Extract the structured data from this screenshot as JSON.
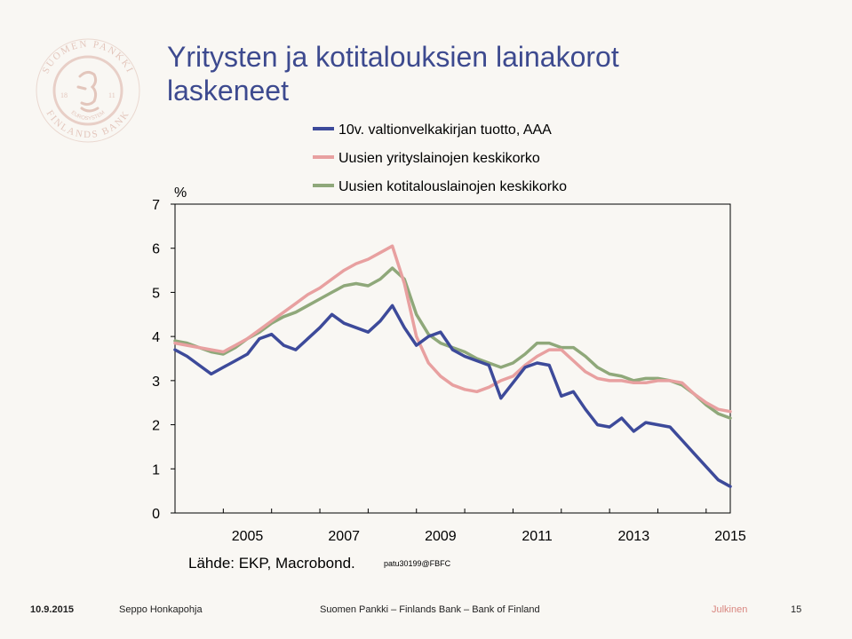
{
  "slide": {
    "title_line1": "Yritysten ja kotitalouksien lainakorot",
    "title_line2": "laskeneet",
    "source": "Lähde: EKP, Macrobond.",
    "code": "patu30199@FBFC"
  },
  "logo": {
    "text_top": "SUOMEN PANKKI",
    "text_bottom": "FINLANDS BANK",
    "text_inner": "EUROSYSTEM",
    "left_number": "18",
    "right_number": "11"
  },
  "footer": {
    "date": "10.9.2015",
    "author": "Seppo Honkapohja",
    "org": "Suomen Pankki – Finlands Bank – Bank of Finland",
    "classification": "Julkinen",
    "page": "15"
  },
  "colors": {
    "title": "#3d4a8f",
    "series1": "#3d4a9a",
    "series2": "#e8a0a0",
    "series3": "#8fa87a",
    "logo": "#e8cfc7",
    "classification": "#d98780"
  },
  "chart_data": {
    "type": "line",
    "ylabel": "%",
    "ylim": [
      0,
      7
    ],
    "yticks": [
      "0",
      "1",
      "2",
      "3",
      "4",
      "5",
      "6",
      "7"
    ],
    "xlim": [
      2004.0,
      2015.5
    ],
    "xticks": [
      "2005",
      "2007",
      "2009",
      "2011",
      "2013",
      "2015"
    ],
    "legend_position": "top",
    "grid": false,
    "series": [
      {
        "name": "10v. valtionvelkakirjan tuotto, AAA",
        "color": "#3d4a9a",
        "x": [
          2004.0,
          2004.25,
          2004.5,
          2004.75,
          2005.0,
          2005.25,
          2005.5,
          2005.75,
          2006.0,
          2006.25,
          2006.5,
          2006.75,
          2007.0,
          2007.25,
          2007.5,
          2007.75,
          2008.0,
          2008.25,
          2008.5,
          2008.75,
          2009.0,
          2009.25,
          2009.5,
          2009.75,
          2010.0,
          2010.25,
          2010.5,
          2010.75,
          2011.0,
          2011.25,
          2011.5,
          2011.75,
          2012.0,
          2012.25,
          2012.5,
          2012.75,
          2013.0,
          2013.25,
          2013.5,
          2013.75,
          2014.0,
          2014.25,
          2014.5,
          2014.75,
          2015.0,
          2015.25,
          2015.5
        ],
        "y": [
          3.7,
          3.55,
          3.35,
          3.15,
          3.3,
          3.45,
          3.6,
          3.95,
          4.05,
          3.8,
          3.7,
          3.95,
          4.2,
          4.5,
          4.3,
          4.2,
          4.1,
          4.35,
          4.7,
          4.2,
          3.8,
          4.0,
          4.1,
          3.7,
          3.55,
          3.45,
          3.35,
          2.6,
          2.95,
          3.3,
          3.4,
          3.35,
          2.65,
          2.75,
          2.35,
          2.0,
          1.95,
          2.15,
          1.85,
          2.05,
          2.0,
          1.95,
          1.65,
          1.35,
          1.05,
          0.75,
          0.6
        ]
      },
      {
        "name": "Uusien yrityslainojen keskikorko",
        "color": "#e8a0a0",
        "x": [
          2004.0,
          2004.25,
          2004.5,
          2004.75,
          2005.0,
          2005.25,
          2005.5,
          2005.75,
          2006.0,
          2006.25,
          2006.5,
          2006.75,
          2007.0,
          2007.25,
          2007.5,
          2007.75,
          2008.0,
          2008.25,
          2008.5,
          2008.75,
          2009.0,
          2009.25,
          2009.5,
          2009.75,
          2010.0,
          2010.25,
          2010.5,
          2010.75,
          2011.0,
          2011.25,
          2011.5,
          2011.75,
          2012.0,
          2012.25,
          2012.5,
          2012.75,
          2013.0,
          2013.25,
          2013.5,
          2013.75,
          2014.0,
          2014.25,
          2014.5,
          2014.75,
          2015.0,
          2015.25,
          2015.5
        ],
        "y": [
          3.85,
          3.8,
          3.75,
          3.7,
          3.65,
          3.8,
          3.95,
          4.15,
          4.35,
          4.55,
          4.75,
          4.95,
          5.1,
          5.3,
          5.5,
          5.65,
          5.75,
          5.9,
          6.05,
          5.2,
          4.0,
          3.4,
          3.1,
          2.9,
          2.8,
          2.75,
          2.85,
          3.0,
          3.1,
          3.35,
          3.55,
          3.7,
          3.7,
          3.45,
          3.2,
          3.05,
          3.0,
          3.0,
          2.95,
          2.95,
          3.0,
          3.0,
          2.95,
          2.7,
          2.5,
          2.35,
          2.3
        ]
      },
      {
        "name": "Uusien kotitalouslainojen keskikorko",
        "color": "#8fa87a",
        "x": [
          2004.0,
          2004.25,
          2004.5,
          2004.75,
          2005.0,
          2005.25,
          2005.5,
          2005.75,
          2006.0,
          2006.25,
          2006.5,
          2006.75,
          2007.0,
          2007.25,
          2007.5,
          2007.75,
          2008.0,
          2008.25,
          2008.5,
          2008.75,
          2009.0,
          2009.25,
          2009.5,
          2009.75,
          2010.0,
          2010.25,
          2010.5,
          2010.75,
          2011.0,
          2011.25,
          2011.5,
          2011.75,
          2012.0,
          2012.25,
          2012.5,
          2012.75,
          2013.0,
          2013.25,
          2013.5,
          2013.75,
          2014.0,
          2014.25,
          2014.5,
          2014.75,
          2015.0,
          2015.25,
          2015.5
        ],
        "y": [
          3.9,
          3.85,
          3.75,
          3.65,
          3.6,
          3.75,
          3.95,
          4.1,
          4.3,
          4.45,
          4.55,
          4.7,
          4.85,
          5.0,
          5.15,
          5.2,
          5.15,
          5.3,
          5.55,
          5.3,
          4.5,
          4.05,
          3.85,
          3.75,
          3.65,
          3.5,
          3.4,
          3.3,
          3.4,
          3.6,
          3.85,
          3.85,
          3.75,
          3.75,
          3.55,
          3.3,
          3.15,
          3.1,
          3.0,
          3.05,
          3.05,
          3.0,
          2.9,
          2.7,
          2.45,
          2.25,
          2.15
        ]
      }
    ]
  }
}
